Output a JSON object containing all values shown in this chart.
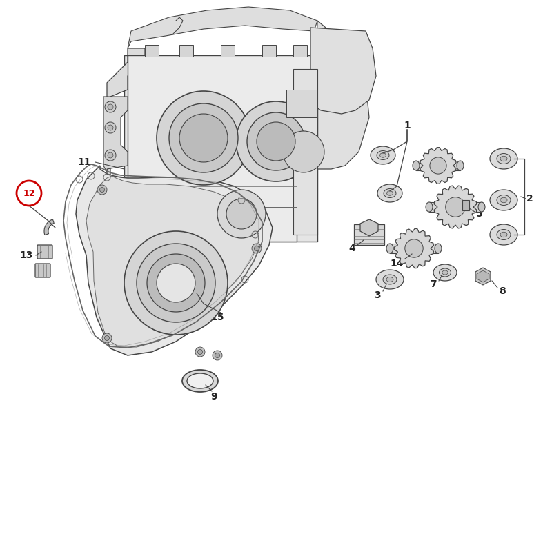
{
  "bg_color": "#ffffff",
  "lc": "#888888",
  "dc": "#444444",
  "mc": "#666666",
  "fc_light": "#e8e8e8",
  "fc_mid": "#d8d8d8",
  "fc_dark": "#c8c8c8",
  "red": "#cc0000",
  "figsize": [
    8.0,
    8.0
  ],
  "dpi": 100
}
